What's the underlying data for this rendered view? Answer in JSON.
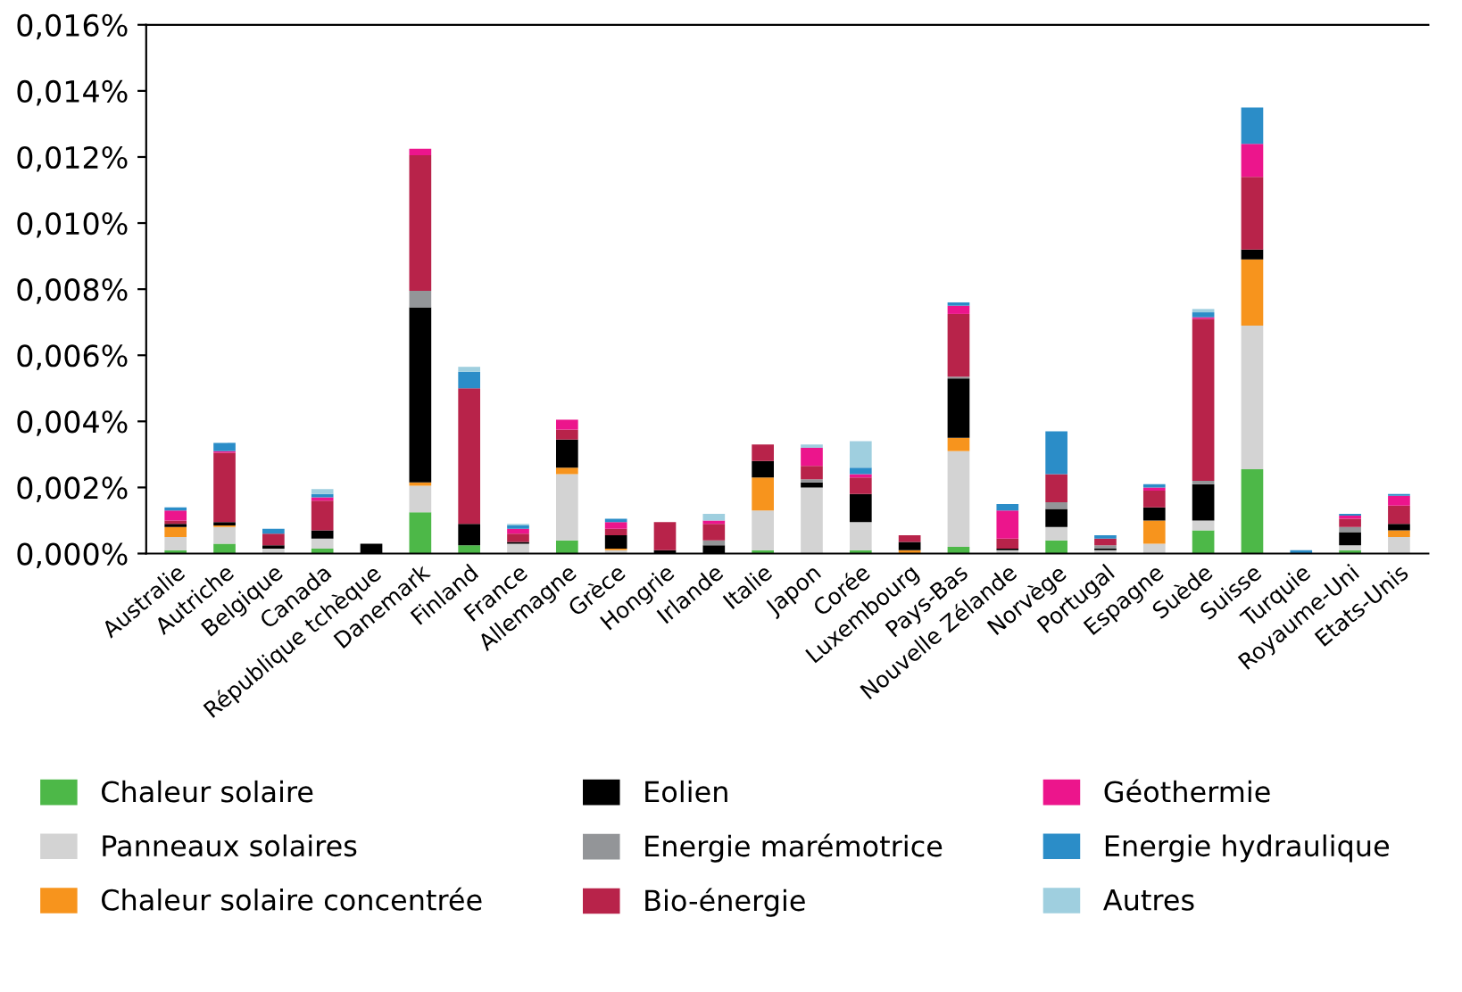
{
  "chart_data": {
    "type": "bar",
    "stacked": true,
    "categories": [
      "Australie",
      "Autriche",
      "Belgique",
      "Canada",
      "République tchèque",
      "Danemark",
      "Finland",
      "France",
      "Allemagne",
      "Grèce",
      "Hongrie",
      "Irlande",
      "Italie",
      "Japon",
      "Corée",
      "Luxembourg",
      "Pays-Bas",
      "Nouvelle Zélande",
      "Norvège",
      "Portugal",
      "Espagne",
      "Suède",
      "Suisse",
      "Turquie",
      "Royaume-Uni",
      "Etats-Unis"
    ],
    "series": [
      {
        "name": "Chaleur solaire",
        "color": "#4db848",
        "values": [
          0.0001,
          0.0003,
          0,
          0.00015,
          0,
          0.00125,
          0.00025,
          0,
          0.0004,
          0,
          0,
          0,
          0.0001,
          0,
          0.0001,
          0,
          0.0002,
          0,
          0.0004,
          0,
          0,
          0.0007,
          0.00255,
          0,
          0.0001,
          0
        ]
      },
      {
        "name": "Panneaux solaires",
        "color": "#d3d3d3",
        "values": [
          0.0004,
          0.0005,
          0.00015,
          0.0003,
          0,
          0.0008,
          0,
          0.0003,
          0.002,
          0.0001,
          0,
          0,
          0.0012,
          0.002,
          0.00085,
          0,
          0.0029,
          0.0001,
          0.0004,
          0.0001,
          0.0003,
          0.0003,
          0.00435,
          0,
          0.00015,
          0.0005
        ]
      },
      {
        "name": "Chaleur solaire concentrée",
        "color": "#f7941d",
        "values": [
          0.0003,
          5e-05,
          0,
          0,
          0,
          0.0001,
          0,
          0,
          0.0002,
          5e-05,
          0,
          0,
          0.001,
          0,
          0,
          0.0001,
          0.0004,
          0,
          0,
          0,
          0.0007,
          0,
          0.002,
          0,
          0,
          0.0002
        ]
      },
      {
        "name": "Eolien",
        "color": "#000000",
        "values": [
          0.0001,
          0.0001,
          0.0001,
          0.00025,
          0.0003,
          0.0053,
          0.00065,
          5e-05,
          0.00085,
          0.0004,
          0.0001,
          0.00025,
          0.0005,
          0.00015,
          0.00085,
          0.00025,
          0.0018,
          5e-05,
          0.00055,
          5e-05,
          0.0004,
          0.0011,
          0.0003,
          0,
          0.0004,
          0.0002
        ]
      },
      {
        "name": "Energie marémotrice",
        "color": "#939598",
        "values": [
          0,
          0,
          0,
          0,
          0,
          0.0005,
          0,
          0,
          0,
          0,
          0,
          0.00015,
          0,
          0.0001,
          0,
          0,
          5e-05,
          0,
          0.0002,
          0.0001,
          0,
          0.0001,
          0,
          0,
          0.00015,
          0
        ]
      },
      {
        "name": "Bio-énergie",
        "color": "#b8234a",
        "values": [
          0.0001,
          0.0021,
          0.00035,
          0.0009,
          0,
          0.0041,
          0.0041,
          0.00025,
          0.0003,
          0.0002,
          0.00085,
          0.0005,
          0.0005,
          0.0004,
          0.0005,
          0.0002,
          0.0019,
          0.0003,
          0.00085,
          0.0002,
          0.0005,
          0.0049,
          0.0022,
          null,
          0.00025,
          0.00055
        ]
      },
      {
        "name": "Géothermie",
        "color": "#ec158c",
        "values": [
          0.0003,
          5e-05,
          0,
          0.0001,
          0,
          0.0002,
          0,
          0.00015,
          0.0003,
          0.0002,
          0,
          0.0001,
          0,
          0.00055,
          0.0001,
          0,
          0.00025,
          0.00085,
          0,
          0,
          0.0001,
          5e-05,
          0.001,
          0,
          0.0001,
          0.0003
        ]
      },
      {
        "name": "Energie hydraulique",
        "color": "#2b8dc8",
        "values": [
          0.0001,
          0.00025,
          0.00015,
          0.0001,
          0,
          0,
          0.0005,
          0.0001,
          0,
          0.0001,
          0,
          0,
          0,
          0,
          0.0002,
          0,
          0.0001,
          0.0002,
          0.0013,
          0.0001,
          0.0001,
          0.00015,
          0.0011,
          0.0001,
          5e-05,
          5e-05
        ]
      },
      {
        "name": "Autres",
        "color": "#9fcfdf",
        "values": [
          0,
          0,
          0,
          0.00015,
          0,
          0,
          0.00015,
          5e-05,
          0,
          0,
          0,
          0.0002,
          0,
          0.0001,
          0.0008,
          0,
          0,
          0,
          0,
          0,
          0,
          0.0001,
          0,
          0,
          0,
          0
        ]
      }
    ],
    "ylim": [
      0,
      0.016
    ],
    "yticks": [
      {
        "value": 0,
        "label": "0,000%"
      },
      {
        "value": 0.002,
        "label": "0,002%"
      },
      {
        "value": 0.004,
        "label": "0,004%"
      },
      {
        "value": 0.006,
        "label": "0,006%"
      },
      {
        "value": 0.008,
        "label": "0,008%"
      },
      {
        "value": 0.01,
        "label": "0,010%"
      },
      {
        "value": 0.012,
        "label": "0,012%"
      },
      {
        "value": 0.014,
        "label": "0,014%"
      },
      {
        "value": 0.016,
        "label": "0,016%"
      }
    ],
    "grid": false,
    "legend": "bottom"
  }
}
